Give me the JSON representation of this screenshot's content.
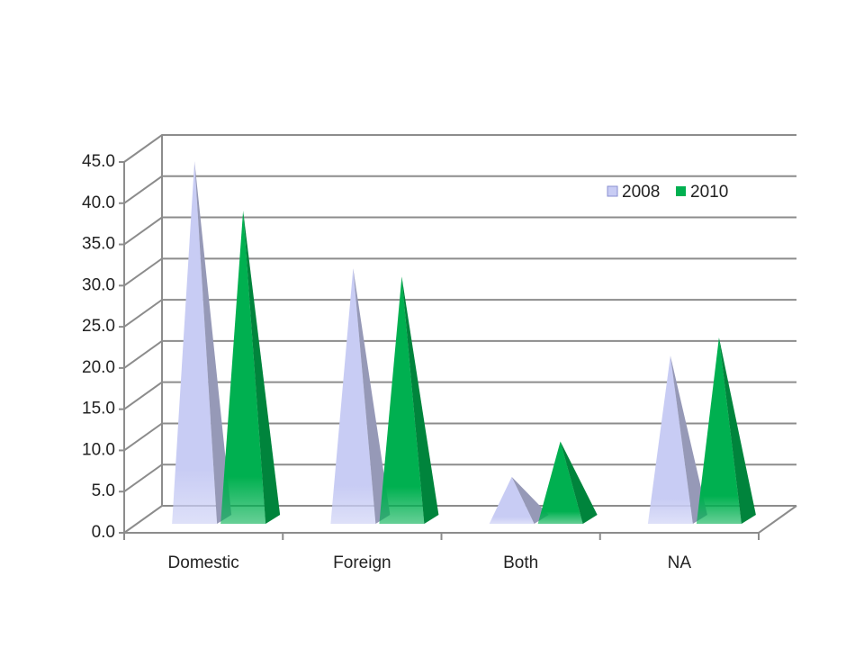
{
  "chart_data": {
    "type": "pyramid",
    "categories": [
      "Domestic",
      "Foreign",
      "Both",
      "NA"
    ],
    "series": [
      {
        "name": "2008",
        "color": "#c8ccf4",
        "values": [
          44.0,
          31.0,
          5.7,
          20.4
        ]
      },
      {
        "name": "2010",
        "color": "#00b050",
        "values": [
          38.0,
          30.0,
          10.0,
          22.6
        ]
      }
    ],
    "ylim": [
      0,
      45
    ],
    "yticks": [
      {
        "value": 0,
        "label": "0.0"
      },
      {
        "value": 5,
        "label": "5.0"
      },
      {
        "value": 10,
        "label": "10.0"
      },
      {
        "value": 15,
        "label": "15.0"
      },
      {
        "value": 20,
        "label": "20.0"
      },
      {
        "value": 25,
        "label": "25.0"
      },
      {
        "value": 30,
        "label": "30.0"
      },
      {
        "value": 35,
        "label": "35.0"
      },
      {
        "value": 40,
        "label": "40.0"
      },
      {
        "value": 45,
        "label": "45.0"
      }
    ],
    "grid": true,
    "legend": "top-right"
  }
}
